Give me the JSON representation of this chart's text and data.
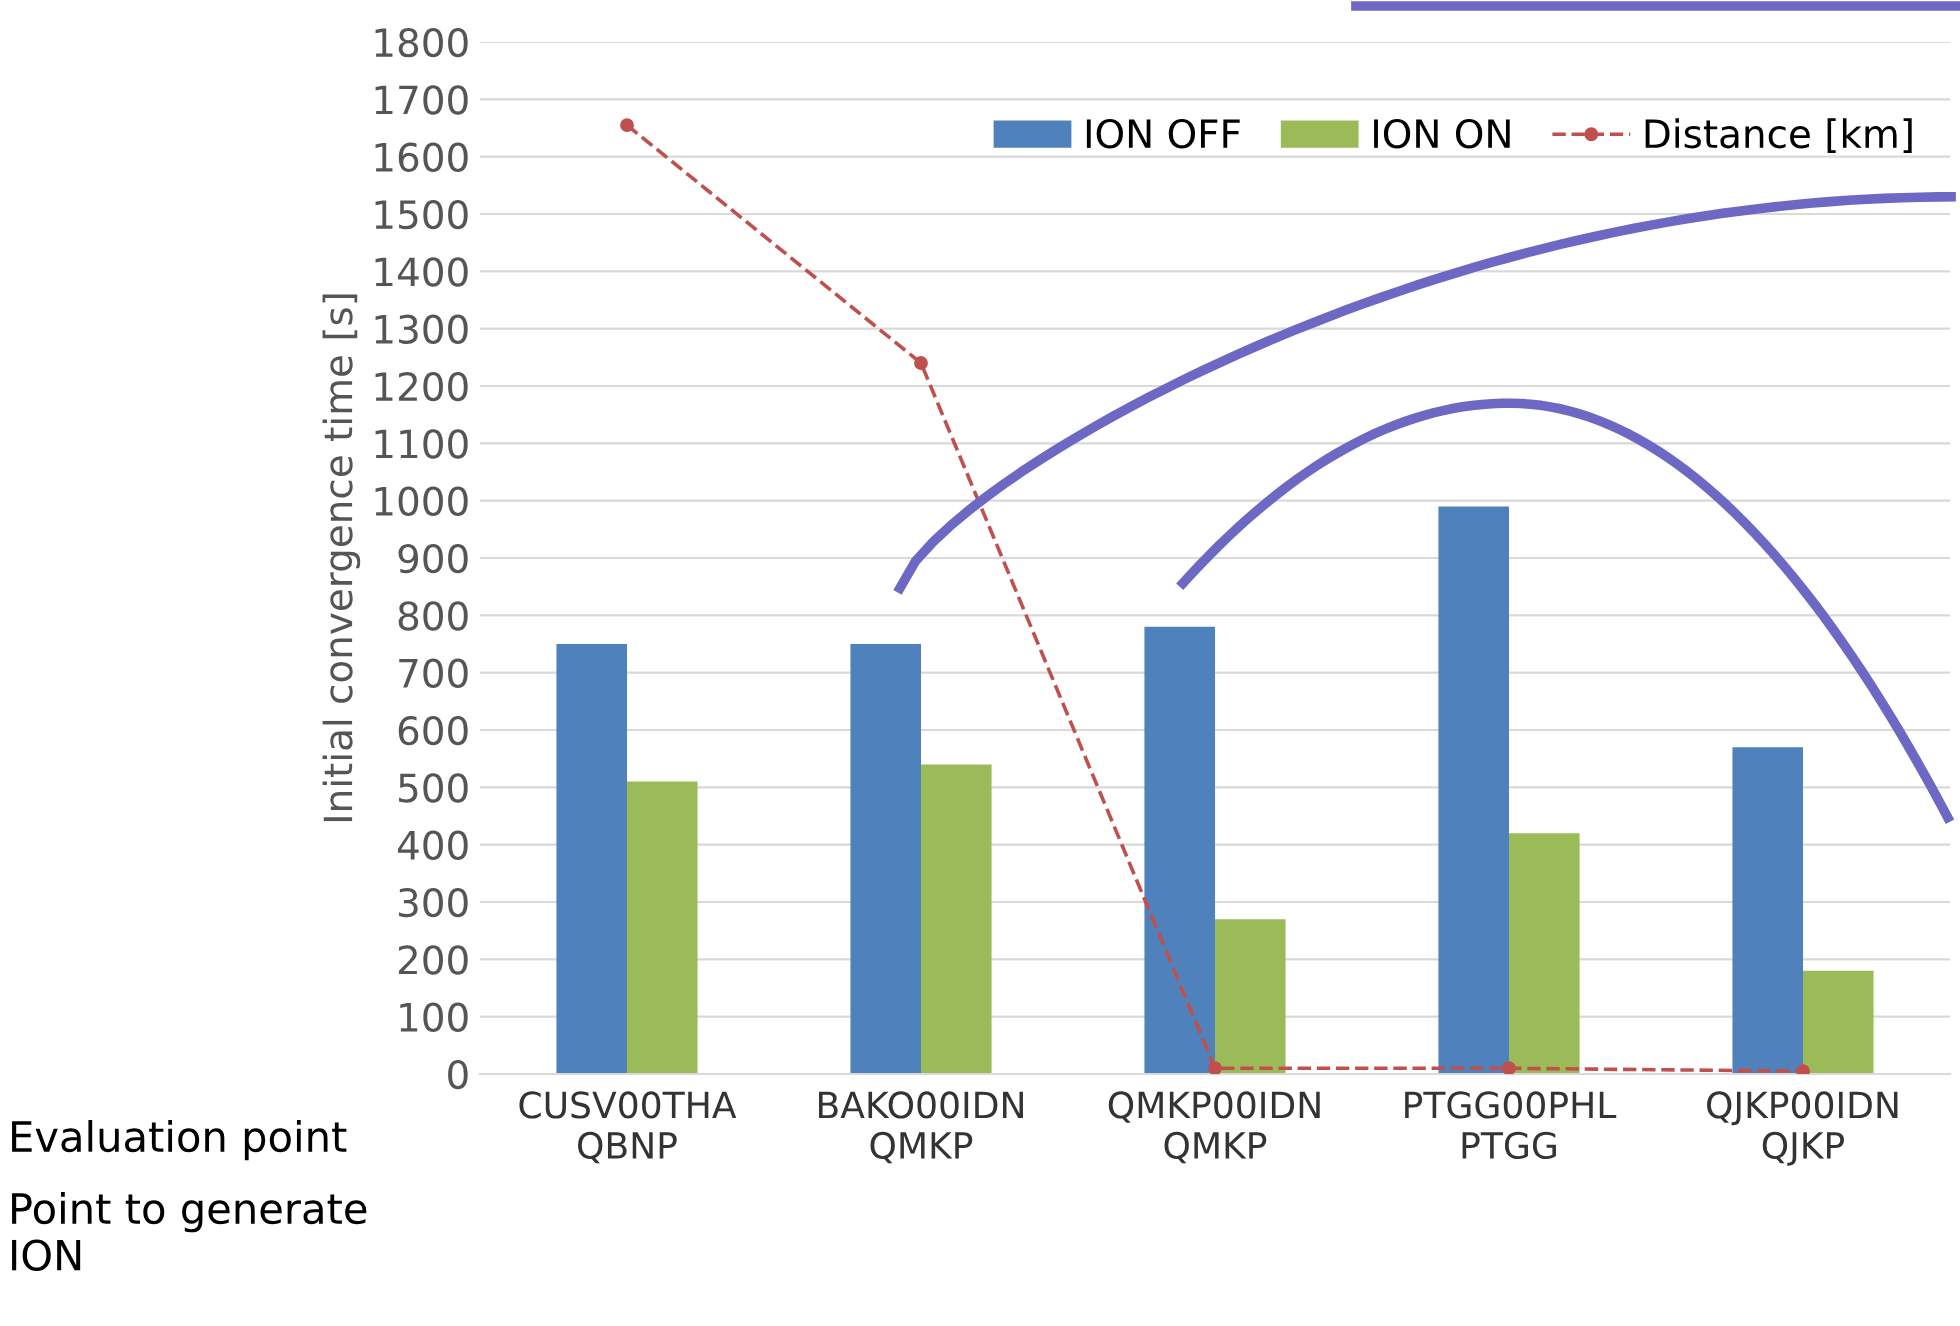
{
  "chart_data": {
    "type": "bar",
    "ylabel": "Initial convergence time [s]",
    "categories": [
      "CUSV00THA\nQBNP",
      "BAKO00IDN\nQMKP",
      "QMKP00IDN\nQMKP",
      "PTGG00PHL\nPTGG",
      "QJKP00IDN\nQJKP"
    ],
    "series": [
      {
        "name": "ION OFF",
        "color": "#4f81bd",
        "values": [
          750,
          750,
          780,
          990,
          570
        ]
      },
      {
        "name": "ION ON",
        "color": "#9bbb59",
        "values": [
          510,
          540,
          270,
          420,
          180
        ]
      },
      {
        "name": "Distance [km]",
        "type": "line",
        "color": "#c0504d",
        "marker": "circle",
        "line_style": "dashed",
        "values": [
          1655,
          1240,
          10,
          10,
          5
        ]
      }
    ],
    "annotations": [
      "Evaluation point",
      "Point to generate\nION"
    ],
    "ylim": [
      0,
      1800
    ],
    "yticks": [
      0,
      100,
      200,
      300,
      400,
      500,
      600,
      700,
      800,
      900,
      1000,
      1100,
      1200,
      1300,
      1400,
      1500,
      1600,
      1700,
      1800
    ],
    "grid": "y",
    "legend": "top right"
  }
}
